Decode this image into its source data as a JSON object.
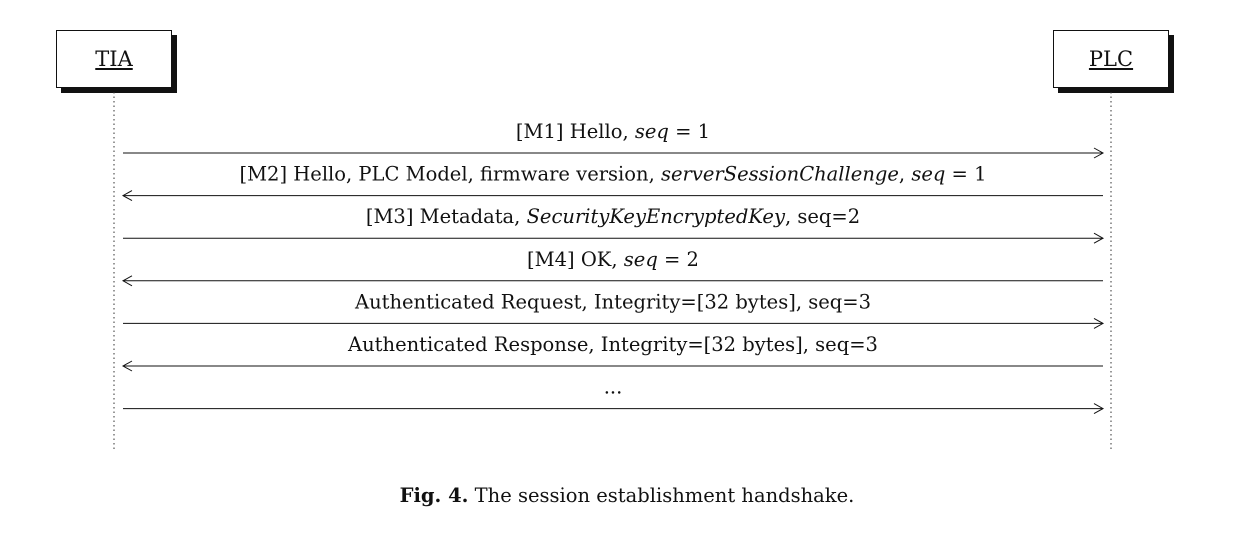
{
  "actors": {
    "left": "TIA",
    "right": "PLC"
  },
  "messages": [
    {
      "direction": "right",
      "parts": [
        {
          "text": "[M1] Hello, "
        },
        {
          "text": "seq",
          "italic": true
        },
        {
          "text": " = 1"
        }
      ]
    },
    {
      "direction": "left",
      "parts": [
        {
          "text": "[M2] Hello, PLC Model, firmware version, "
        },
        {
          "text": "serverSessionChallenge",
          "italic": true
        },
        {
          "text": ", "
        },
        {
          "text": "seq",
          "italic": true
        },
        {
          "text": " = 1"
        }
      ]
    },
    {
      "direction": "right",
      "parts": [
        {
          "text": "[M3] Metadata, "
        },
        {
          "text": "SecurityKeyEncryptedKey",
          "italic": true
        },
        {
          "text": ", seq=2"
        }
      ]
    },
    {
      "direction": "left",
      "parts": [
        {
          "text": "[M4] OK, "
        },
        {
          "text": "seq",
          "italic": true
        },
        {
          "text": " = 2"
        }
      ]
    },
    {
      "direction": "right",
      "parts": [
        {
          "text": "Authenticated Request, Integrity=[32 bytes], seq=3"
        }
      ]
    },
    {
      "direction": "left",
      "parts": [
        {
          "text": "Authenticated Response, Integrity=[32 bytes], seq=3"
        }
      ]
    },
    {
      "direction": "right",
      "parts": [
        {
          "text": "..."
        }
      ]
    }
  ],
  "caption": {
    "label": "Fig. 4.",
    "text": "The session establishment handshake."
  }
}
